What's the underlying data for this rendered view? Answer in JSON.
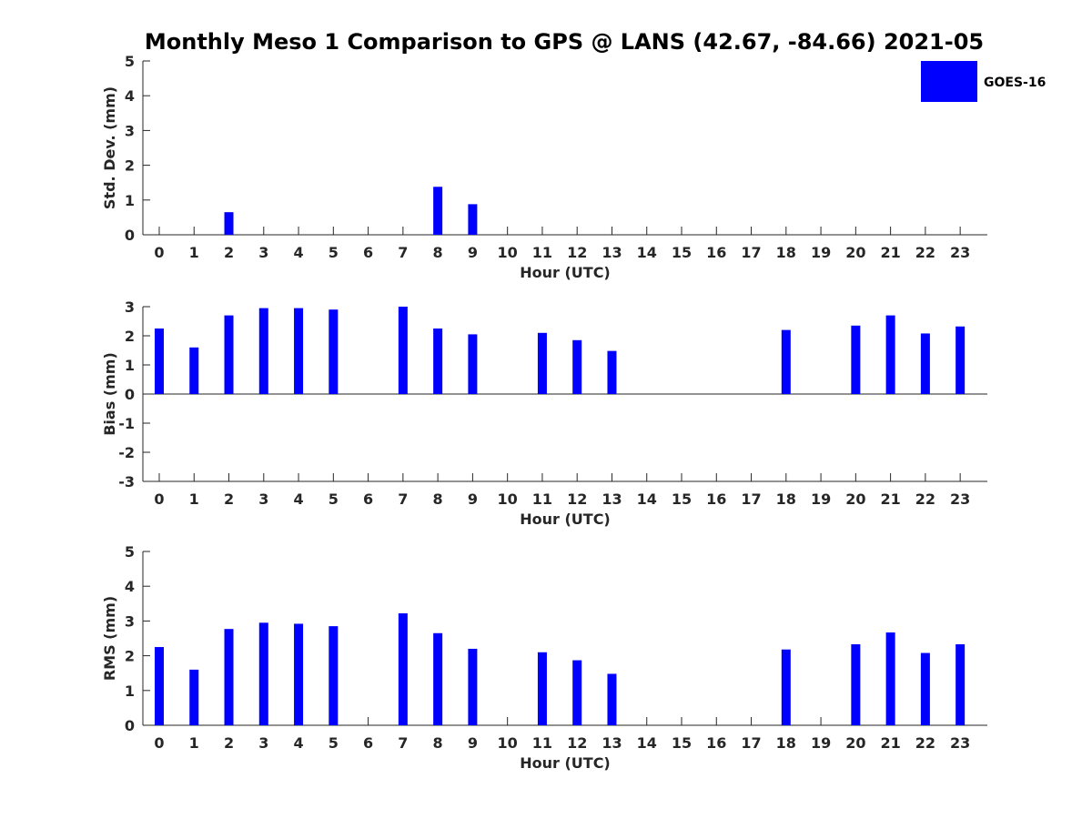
{
  "chart_data": {
    "title": "Monthly Meso 1 Comparison to GPS @ LANS (42.67, -84.66) 2021-05",
    "legend": {
      "label": "GOES-16",
      "color": "#0000ff",
      "placement": "top-right"
    },
    "panels": [
      {
        "type": "bar",
        "name": "std-dev",
        "ylabel": "Std. Dev. (mm)",
        "xlabel": "Hour (UTC)",
        "ylim": [
          0,
          5
        ],
        "yticks": [
          0,
          1,
          2,
          3,
          4,
          5
        ],
        "categories": [
          "0",
          "1",
          "2",
          "3",
          "4",
          "5",
          "6",
          "7",
          "8",
          "9",
          "10",
          "11",
          "12",
          "13",
          "14",
          "15",
          "16",
          "17",
          "18",
          "19",
          "20",
          "21",
          "22",
          "23"
        ],
        "values": [
          null,
          null,
          0.65,
          null,
          null,
          null,
          null,
          null,
          1.38,
          0.88,
          null,
          null,
          null,
          null,
          null,
          null,
          null,
          null,
          null,
          null,
          null,
          null,
          null,
          null
        ],
        "color": "#0000ff"
      },
      {
        "type": "bar",
        "name": "bias",
        "ylabel": "Bias (mm)",
        "xlabel": "Hour (UTC)",
        "ylim": [
          -3,
          3
        ],
        "yticks": [
          -3,
          -2,
          -1,
          0,
          1,
          2,
          3
        ],
        "categories": [
          "0",
          "1",
          "2",
          "3",
          "4",
          "5",
          "6",
          "7",
          "8",
          "9",
          "10",
          "11",
          "12",
          "13",
          "14",
          "15",
          "16",
          "17",
          "18",
          "19",
          "20",
          "21",
          "22",
          "23"
        ],
        "values": [
          2.25,
          1.6,
          2.7,
          2.95,
          2.95,
          2.9,
          null,
          3.0,
          2.25,
          2.05,
          null,
          2.1,
          1.85,
          1.48,
          null,
          null,
          null,
          null,
          2.2,
          null,
          2.35,
          2.7,
          2.08,
          2.32
        ],
        "color": "#0000ff"
      },
      {
        "type": "bar",
        "name": "rms",
        "ylabel": "RMS (mm)",
        "xlabel": "Hour (UTC)",
        "ylim": [
          0,
          5
        ],
        "yticks": [
          0,
          1,
          2,
          3,
          4,
          5
        ],
        "categories": [
          "0",
          "1",
          "2",
          "3",
          "4",
          "5",
          "6",
          "7",
          "8",
          "9",
          "10",
          "11",
          "12",
          "13",
          "14",
          "15",
          "16",
          "17",
          "18",
          "19",
          "20",
          "21",
          "22",
          "23"
        ],
        "values": [
          2.25,
          1.6,
          2.77,
          2.95,
          2.92,
          2.85,
          null,
          3.22,
          2.65,
          2.2,
          null,
          2.1,
          1.87,
          1.48,
          null,
          null,
          null,
          null,
          2.18,
          null,
          2.33,
          2.67,
          2.08,
          2.33
        ],
        "color": "#0000ff"
      }
    ]
  }
}
